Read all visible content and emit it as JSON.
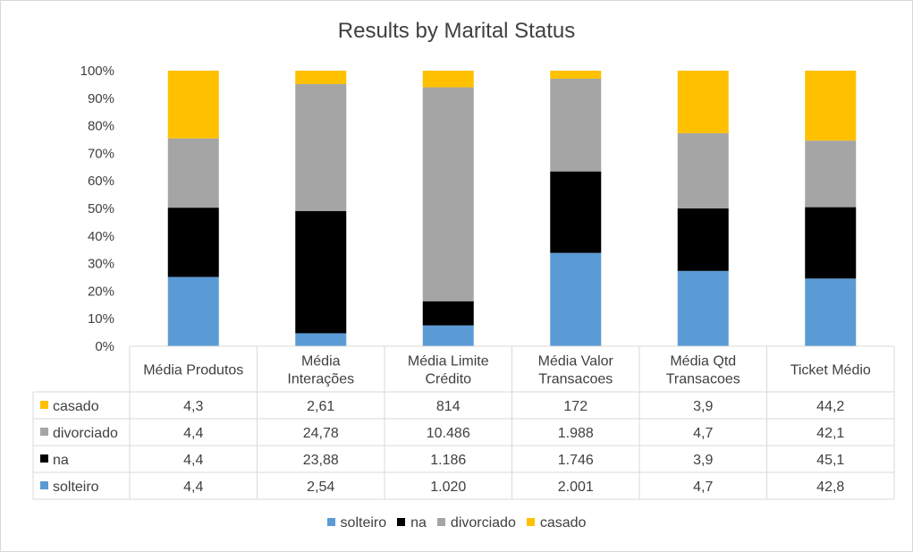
{
  "chart_data": {
    "type": "bar",
    "stacked": "percent",
    "title": "Results by Marital Status",
    "categories": [
      "Média Produtos",
      "Média\nInterações",
      "Média Limite\nCrédito",
      "Média Valor\nTransacoes",
      "Média Qtd\nTransacoes",
      "Ticket Médio"
    ],
    "series": [
      {
        "name": "solteiro",
        "color": "#5b9bd5",
        "values": [
          4.4,
          2.54,
          1020,
          2001,
          4.7,
          42.8
        ],
        "labels": [
          "4,4",
          "2,54",
          "1.020",
          "2.001",
          "4,7",
          "42,8"
        ]
      },
      {
        "name": "na",
        "color": "#000000",
        "values": [
          4.4,
          23.88,
          1186,
          1746,
          3.9,
          45.1
        ],
        "labels": [
          "4,4",
          "23,88",
          "1.186",
          "1.746",
          "3,9",
          "45,1"
        ]
      },
      {
        "name": "divorciado",
        "color": "#a5a5a5",
        "values": [
          4.4,
          24.78,
          10486,
          1988,
          4.7,
          42.1
        ],
        "labels": [
          "4,4",
          "24,78",
          "10.486",
          "1.988",
          "4,7",
          "42,1"
        ]
      },
      {
        "name": "casado",
        "color": "#ffc000",
        "values": [
          4.3,
          2.61,
          814,
          172,
          3.9,
          44.2
        ],
        "labels": [
          "4,3",
          "2,61",
          "814",
          "172",
          "3,9",
          "44,2"
        ]
      }
    ],
    "table_row_order": [
      "casado",
      "divorciado",
      "na",
      "solteiro"
    ],
    "y_ticks": [
      "0%",
      "10%",
      "20%",
      "30%",
      "40%",
      "50%",
      "60%",
      "70%",
      "80%",
      "90%",
      "100%"
    ],
    "ylim": [
      0,
      100
    ],
    "grid": false,
    "legend_position": "bottom",
    "data_table": true
  }
}
